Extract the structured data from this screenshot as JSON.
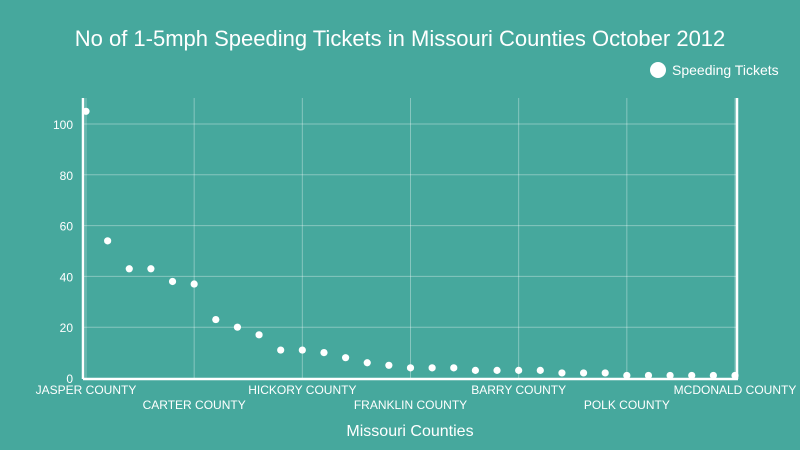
{
  "chart_data": {
    "type": "scatter",
    "title": "No of 1-5mph Speeding Tickets in Missouri Counties October 2012",
    "xlabel": "Missouri Counties",
    "ylabel": "",
    "ylim": [
      0,
      110
    ],
    "yticks": [
      0,
      20,
      40,
      60,
      80,
      100
    ],
    "x_tick_labels": [
      {
        "index": 0,
        "label": "JASPER COUNTY"
      },
      {
        "index": 5,
        "label": "CARTER COUNTY"
      },
      {
        "index": 10,
        "label": "HICKORY COUNTY"
      },
      {
        "index": 15,
        "label": "FRANKLIN COUNTY"
      },
      {
        "index": 20,
        "label": "BARRY COUNTY"
      },
      {
        "index": 25,
        "label": "POLK COUNTY"
      },
      {
        "index": 30,
        "label": "MCDONALD COUNTY"
      }
    ],
    "legend": {
      "position": "top-right",
      "entries": [
        "Speeding Tickets"
      ]
    },
    "grid": true,
    "series": [
      {
        "name": "Speeding Tickets",
        "color": "#ffffff",
        "values": [
          105,
          54,
          43,
          43,
          38,
          37,
          23,
          20,
          17,
          11,
          11,
          10,
          8,
          6,
          5,
          4,
          4,
          4,
          3,
          3,
          3,
          3,
          2,
          2,
          2,
          1,
          1,
          1,
          1,
          1,
          1
        ]
      }
    ]
  }
}
